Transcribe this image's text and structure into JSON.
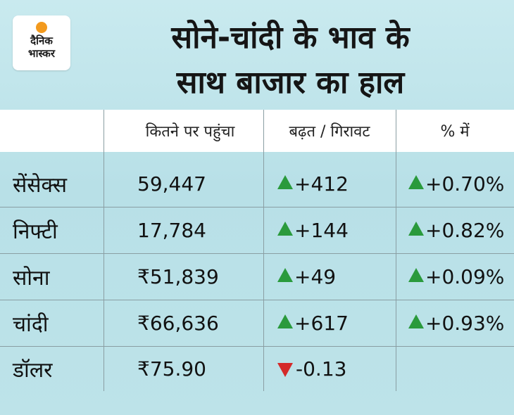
{
  "brand": {
    "line1": "दैनिक",
    "line2": "भास्कर",
    "accent": "#f39a1e"
  },
  "title": {
    "line1": "सोने-चांदी के भाव के",
    "line2": "साथ बाजार का हाल"
  },
  "colors": {
    "up": "#2a9a3c",
    "down": "#d42a2a"
  },
  "table": {
    "headers": [
      "",
      "कितने पर पहुंचा",
      "बढ़त / गिरावट",
      "% में"
    ],
    "rows": [
      {
        "name": "सेंसेक्स",
        "value": "59,447",
        "change": "+412",
        "change_dir": "up",
        "percent": "+0.70%",
        "percent_dir": "up"
      },
      {
        "name": "निफ्टी",
        "value": "17,784",
        "change": "+144",
        "change_dir": "up",
        "percent": "+0.82%",
        "percent_dir": "up"
      },
      {
        "name": "सोना",
        "value": "₹51,839",
        "change": "+49",
        "change_dir": "up",
        "percent": "+0.09%",
        "percent_dir": "up"
      },
      {
        "name": "चांदी",
        "value": "₹66,636",
        "change": "+617",
        "change_dir": "up",
        "percent": "+0.93%",
        "percent_dir": "up"
      },
      {
        "name": "डॉलर",
        "value": "₹75.90",
        "change": "-0.13",
        "change_dir": "down",
        "percent": "",
        "percent_dir": ""
      }
    ]
  }
}
